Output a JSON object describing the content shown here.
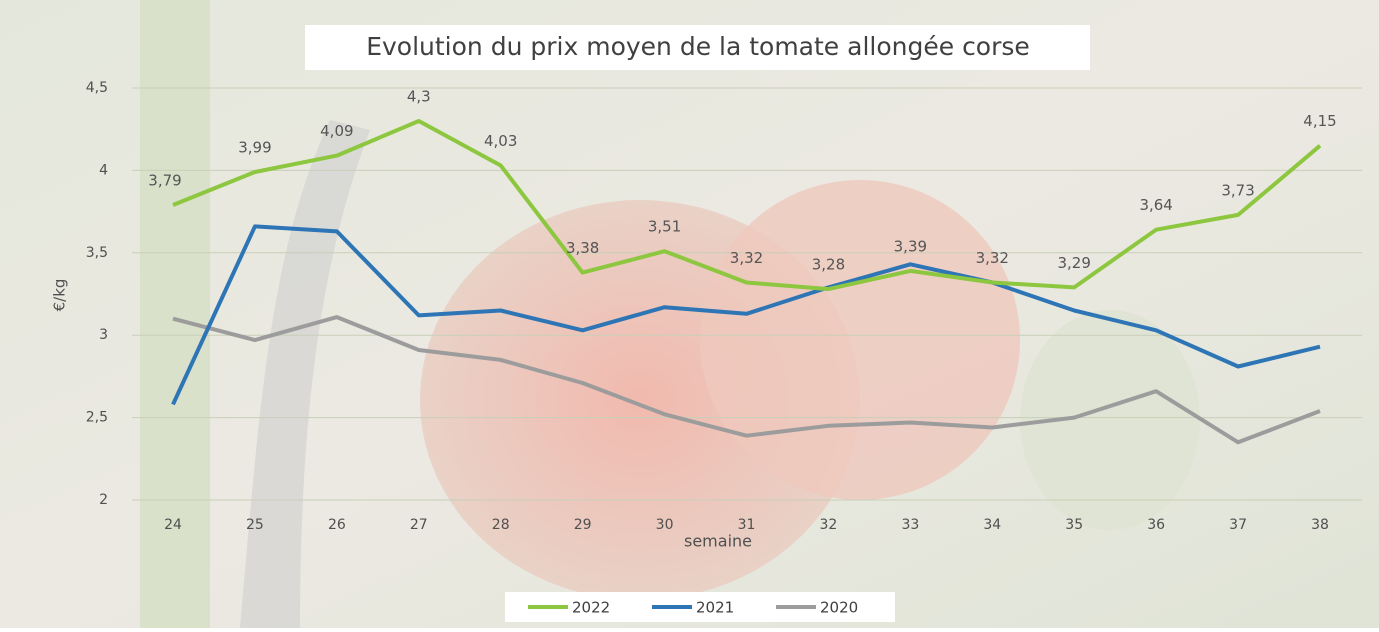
{
  "chart_data": {
    "type": "line",
    "title": "Evolution du prix moyen de la tomate allongée corse",
    "x_label": "semaine",
    "y_label": "€/kg",
    "categories": [
      "24",
      "25",
      "26",
      "27",
      "28",
      "29",
      "30",
      "31",
      "32",
      "33",
      "34",
      "35",
      "36",
      "37",
      "38"
    ],
    "ylim": [
      2,
      4.5
    ],
    "yticks": [
      2,
      {
        "value": 2.5,
        "label": "2,5"
      },
      3,
      {
        "value": 3.5,
        "label": "3,5"
      },
      4,
      {
        "value": 4.5,
        "label": "4,5"
      }
    ],
    "grid": true,
    "legend": "bottom",
    "series": [
      {
        "name": "2022",
        "color": "#8dc63f",
        "values": [
          3.79,
          3.99,
          4.09,
          4.3,
          4.03,
          3.38,
          3.51,
          3.32,
          3.28,
          3.39,
          3.32,
          3.29,
          3.64,
          3.73,
          4.15
        ],
        "value_labels": [
          "3,79",
          "3,99",
          "4,09",
          "4,3",
          "4,03",
          "3,38",
          "3,51",
          "3,32",
          "3,28",
          "3,39",
          "3,32",
          "3,29",
          "3,64",
          "3,73",
          "4,15"
        ]
      },
      {
        "name": "2021",
        "color": "#2e75b6",
        "values": [
          2.58,
          3.66,
          3.63,
          3.12,
          3.15,
          3.03,
          3.17,
          3.13,
          3.29,
          3.43,
          3.32,
          3.15,
          3.03,
          2.81,
          2.93
        ]
      },
      {
        "name": "2020",
        "color": "#9c9c9c",
        "values": [
          3.1,
          2.97,
          3.11,
          2.91,
          2.85,
          2.71,
          2.52,
          2.39,
          2.45,
          2.47,
          2.44,
          2.5,
          2.66,
          2.35,
          2.54
        ]
      }
    ]
  }
}
